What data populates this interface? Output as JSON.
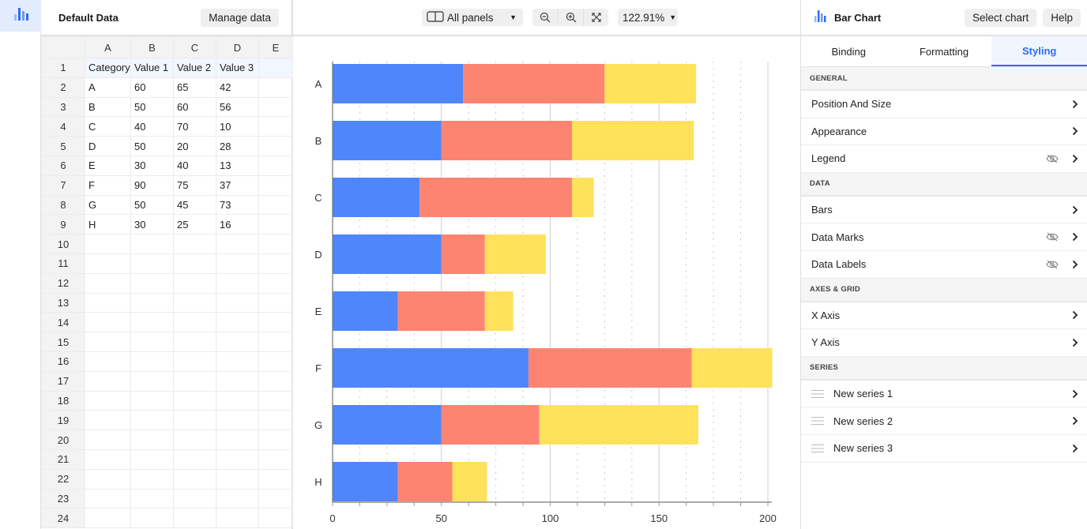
{
  "rail": {
    "items": [
      {
        "icon": "bar-chart-icon",
        "active": true
      }
    ]
  },
  "data_panel": {
    "title": "Default Data",
    "manage_button": "Manage data",
    "columns": [
      "A",
      "B",
      "C",
      "D",
      "E"
    ],
    "rows": [
      {
        "n": "1",
        "cells": [
          "Category",
          "Value 1",
          "Value 2",
          "Value 3",
          ""
        ]
      },
      {
        "n": "2",
        "cells": [
          "A",
          "60",
          "65",
          "42",
          ""
        ]
      },
      {
        "n": "3",
        "cells": [
          "B",
          "50",
          "60",
          "56",
          ""
        ]
      },
      {
        "n": "4",
        "cells": [
          "C",
          "40",
          "70",
          "10",
          ""
        ]
      },
      {
        "n": "5",
        "cells": [
          "D",
          "50",
          "20",
          "28",
          ""
        ]
      },
      {
        "n": "6",
        "cells": [
          "E",
          "30",
          "40",
          "13",
          ""
        ]
      },
      {
        "n": "7",
        "cells": [
          "F",
          "90",
          "75",
          "37",
          ""
        ]
      },
      {
        "n": "8",
        "cells": [
          "G",
          "50",
          "45",
          "73",
          ""
        ]
      },
      {
        "n": "9",
        "cells": [
          "H",
          "30",
          "25",
          "16",
          ""
        ]
      },
      {
        "n": "10",
        "cells": [
          "",
          "",
          "",
          "",
          ""
        ]
      },
      {
        "n": "11",
        "cells": [
          "",
          "",
          "",
          "",
          ""
        ]
      },
      {
        "n": "12",
        "cells": [
          "",
          "",
          "",
          "",
          ""
        ]
      },
      {
        "n": "13",
        "cells": [
          "",
          "",
          "",
          "",
          ""
        ]
      },
      {
        "n": "14",
        "cells": [
          "",
          "",
          "",
          "",
          ""
        ]
      },
      {
        "n": "15",
        "cells": [
          "",
          "",
          "",
          "",
          ""
        ]
      },
      {
        "n": "16",
        "cells": [
          "",
          "",
          "",
          "",
          ""
        ]
      },
      {
        "n": "17",
        "cells": [
          "",
          "",
          "",
          "",
          ""
        ]
      },
      {
        "n": "18",
        "cells": [
          "",
          "",
          "",
          "",
          ""
        ]
      },
      {
        "n": "19",
        "cells": [
          "",
          "",
          "",
          "",
          ""
        ]
      },
      {
        "n": "20",
        "cells": [
          "",
          "",
          "",
          "",
          ""
        ]
      },
      {
        "n": "21",
        "cells": [
          "",
          "",
          "",
          "",
          ""
        ]
      },
      {
        "n": "22",
        "cells": [
          "",
          "",
          "",
          "",
          ""
        ]
      },
      {
        "n": "23",
        "cells": [
          "",
          "",
          "",
          "",
          ""
        ]
      },
      {
        "n": "24",
        "cells": [
          "",
          "",
          "",
          "",
          ""
        ]
      }
    ]
  },
  "toolbar": {
    "panels_label": "All panels",
    "zoom_out": "zoom-out-icon",
    "zoom_in": "zoom-in-icon",
    "fit": "fit-screen-icon",
    "zoom_level": "122.91%"
  },
  "side_panel": {
    "title": "Bar Chart",
    "select_chart": "Select chart",
    "help": "Help",
    "tabs": [
      {
        "label": "Binding",
        "active": false
      },
      {
        "label": "Formatting",
        "active": false
      },
      {
        "label": "Styling",
        "active": true
      }
    ],
    "sections": [
      {
        "title": "GENERAL",
        "items": [
          {
            "label": "Position And Size",
            "hidden_icon": false
          },
          {
            "label": "Appearance",
            "hidden_icon": false
          },
          {
            "label": "Legend",
            "hidden_icon": true
          }
        ]
      },
      {
        "title": "DATA",
        "items": [
          {
            "label": "Bars",
            "hidden_icon": false
          },
          {
            "label": "Data Marks",
            "hidden_icon": true
          },
          {
            "label": "Data Labels",
            "hidden_icon": true
          }
        ]
      },
      {
        "title": "AXES & GRID",
        "items": [
          {
            "label": "X Axis",
            "hidden_icon": false
          },
          {
            "label": "Y Axis",
            "hidden_icon": false
          }
        ]
      },
      {
        "title": "SERIES",
        "items": [
          {
            "label": "New series 1",
            "drag": true
          },
          {
            "label": "New series 2",
            "drag": true
          },
          {
            "label": "New series 3",
            "drag": true
          }
        ]
      }
    ]
  },
  "colors": {
    "series1": "#4f86fb",
    "series2": "#fe8472",
    "series3": "#fee25b",
    "accent": "#2f6cf2"
  },
  "chart_data": {
    "type": "bar",
    "orientation": "horizontal",
    "stacked": true,
    "title": "",
    "xlabel": "",
    "ylabel": "",
    "categories": [
      "A",
      "B",
      "C",
      "D",
      "E",
      "F",
      "G",
      "H"
    ],
    "series": [
      {
        "name": "New series 1",
        "values": [
          60,
          50,
          40,
          50,
          30,
          90,
          50,
          30
        ]
      },
      {
        "name": "New series 2",
        "values": [
          65,
          60,
          70,
          20,
          40,
          75,
          45,
          25
        ]
      },
      {
        "name": "New series 3",
        "values": [
          42,
          56,
          10,
          28,
          13,
          37,
          73,
          16
        ]
      }
    ],
    "xlim": [
      0,
      200
    ],
    "x_ticks": [
      "0",
      "50",
      "100",
      "150",
      "200"
    ],
    "grid": true,
    "legend": "hidden"
  }
}
